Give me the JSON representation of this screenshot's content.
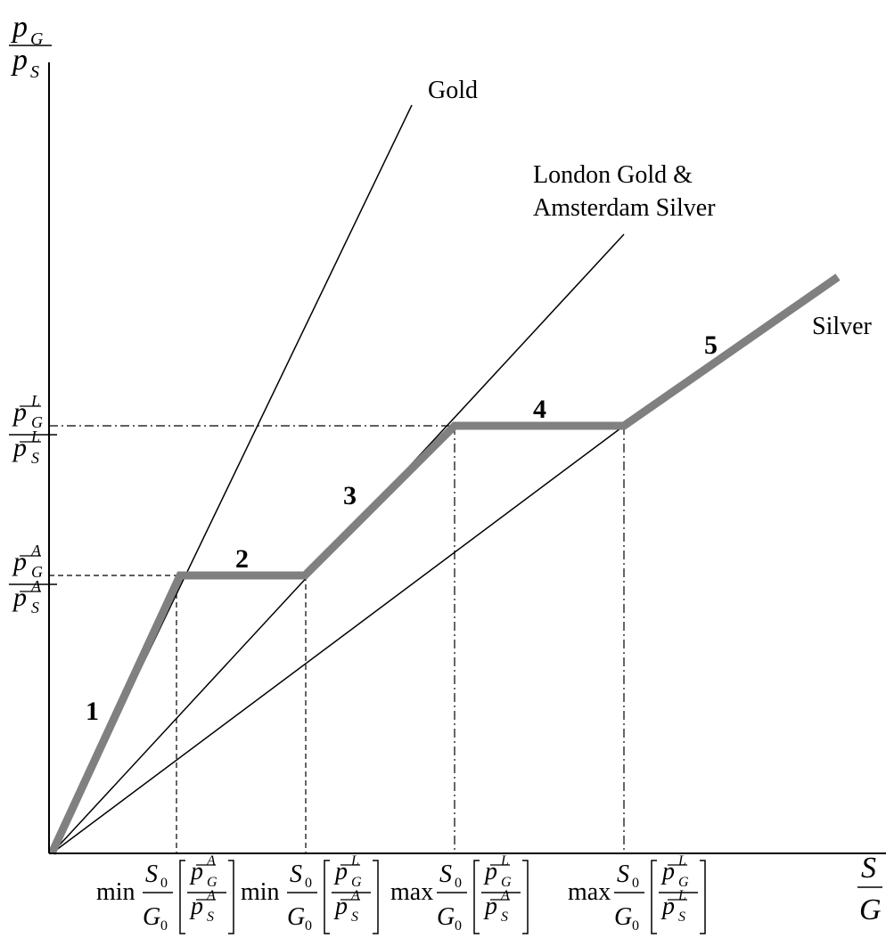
{
  "diagram": {
    "y_axis_label": {
      "num": "p",
      "num_sub": "G",
      "den": "p",
      "den_sub": "S"
    },
    "x_axis_label": {
      "num": "S",
      "den": "G"
    },
    "rays": [
      {
        "name": "gold",
        "label_lines": [
          "Gold"
        ]
      },
      {
        "name": "london-gold-amsterdam-silver",
        "label_lines": [
          "London Gold &",
          "Amsterdam Silver"
        ]
      },
      {
        "name": "silver",
        "label_lines": [
          "Silver"
        ]
      }
    ],
    "segments": [
      "1",
      "2",
      "3",
      "4",
      "5"
    ],
    "y_ticks": [
      {
        "name": "ratio-london",
        "sup": "L"
      },
      {
        "name": "ratio-amsterdam",
        "sup": "A"
      }
    ],
    "x_ticks": [
      {
        "op": "min",
        "top_sup": "A",
        "bottom_sup": "A"
      },
      {
        "op": "min",
        "top_sup": "L",
        "bottom_sup": "A"
      },
      {
        "op": "max",
        "top_sup": "L",
        "bottom_sup": "A"
      },
      {
        "op": "max",
        "top_sup": "L",
        "bottom_sup": "L"
      }
    ],
    "tick_symbols": {
      "p": "p",
      "G": "G",
      "S": "S",
      "S0": "S",
      "G0": "G",
      "zero": "0"
    },
    "colors": {
      "ink": "#000000",
      "path": "#808080",
      "background": "#ffffff"
    }
  }
}
